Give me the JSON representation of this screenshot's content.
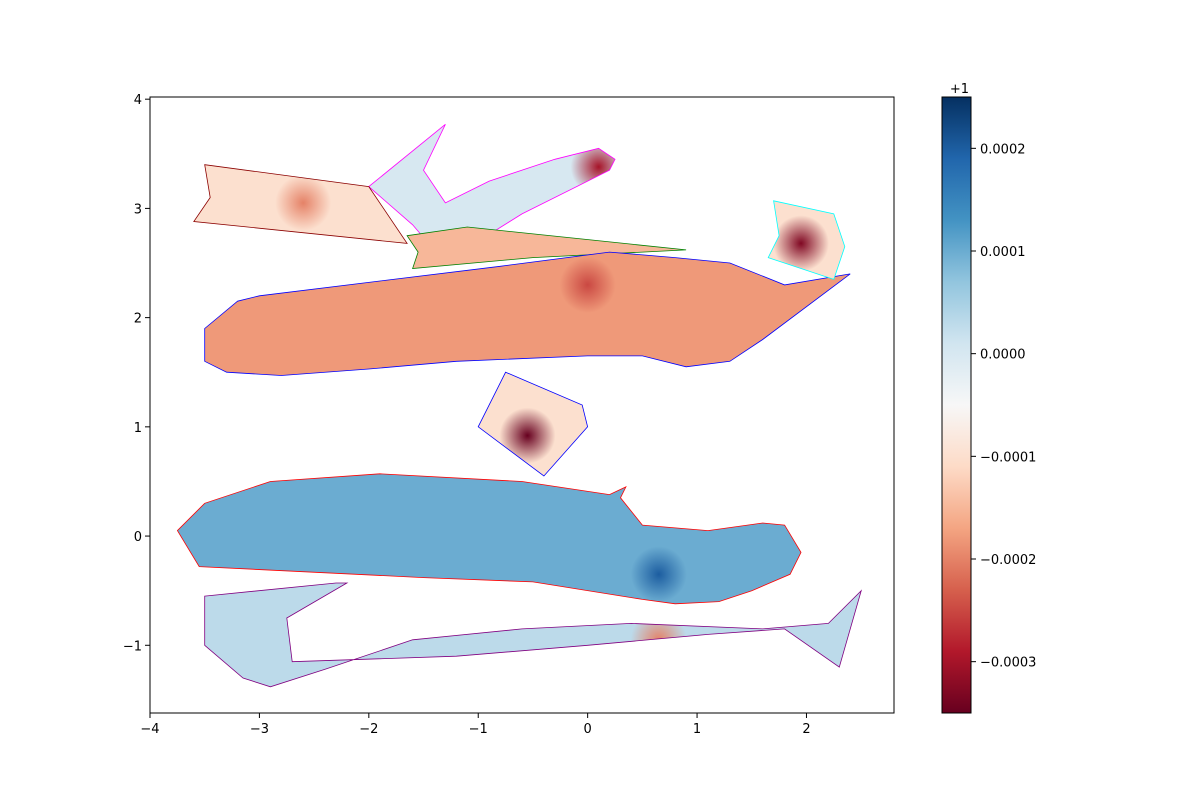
{
  "chart_data": {
    "type": "heatmap",
    "title": "",
    "xlabel": "",
    "ylabel": "",
    "xlim": [
      -4.0,
      2.8
    ],
    "ylim": [
      -1.62,
      4.02
    ],
    "x_ticks": [
      -4,
      -3,
      -2,
      -1,
      0,
      1,
      2
    ],
    "x_tick_labels": [
      "−4",
      "−3",
      "−2",
      "−1",
      "0",
      "1",
      "2"
    ],
    "y_ticks": [
      -1,
      0,
      1,
      2,
      3,
      4
    ],
    "y_tick_labels": [
      "−1",
      "0",
      "1",
      "2",
      "3",
      "4"
    ],
    "grid": false,
    "colormap": "RdBu",
    "colorbar": {
      "offset_label": "+1",
      "range": [
        -0.00035,
        0.00025
      ],
      "ticks": [
        0.0002,
        0.0001,
        0.0,
        -0.0001,
        -0.0002,
        -0.0003
      ],
      "tick_labels": [
        "0.0002",
        "0.0001",
        "0.0000",
        "−0.0001",
        "−0.0002",
        "−0.0003"
      ]
    },
    "regions": [
      {
        "name": "magenta hook",
        "outline_color": "#ff00ff",
        "value": 0.0,
        "polygon": [
          [
            -2.0,
            3.2
          ],
          [
            -1.3,
            3.77
          ],
          [
            -1.5,
            3.35
          ],
          [
            -1.3,
            3.05
          ],
          [
            -0.9,
            3.25
          ],
          [
            -0.3,
            3.45
          ],
          [
            0.1,
            3.55
          ],
          [
            0.25,
            3.45
          ],
          [
            0.2,
            3.35
          ],
          [
            -0.6,
            2.95
          ],
          [
            -1.0,
            2.7
          ],
          [
            -1.3,
            2.5
          ],
          [
            -1.6,
            2.85
          ]
        ],
        "hotspots": [
          {
            "x": 0.1,
            "y": 3.38,
            "value": -0.0003
          }
        ]
      },
      {
        "name": "dark red left strip",
        "outline_color": "#8b0000",
        "value": -0.0001,
        "polygon": [
          [
            -3.5,
            3.4
          ],
          [
            -2.0,
            3.2
          ],
          [
            -1.65,
            2.68
          ],
          [
            -3.6,
            2.88
          ],
          [
            -3.45,
            3.1
          ]
        ],
        "hotspots": [
          {
            "x": -2.6,
            "y": 3.05,
            "value": -0.0002
          }
        ]
      },
      {
        "name": "green strip",
        "outline_color": "#008000",
        "value": -0.00015,
        "polygon": [
          [
            -1.65,
            2.75
          ],
          [
            -1.1,
            2.83
          ],
          [
            0.9,
            2.62
          ],
          [
            -0.5,
            2.55
          ],
          [
            -1.6,
            2.45
          ],
          [
            -1.55,
            2.6
          ]
        ],
        "hotspots": []
      },
      {
        "name": "blue large shape",
        "outline_color": "#0000ff",
        "value": -0.00018,
        "polygon": [
          [
            -3.2,
            2.15
          ],
          [
            -3.0,
            2.2
          ],
          [
            -0.8,
            2.47
          ],
          [
            0.2,
            2.6
          ],
          [
            0.8,
            2.55
          ],
          [
            1.3,
            2.5
          ],
          [
            1.8,
            2.3
          ],
          [
            2.4,
            2.4
          ],
          [
            1.6,
            1.8
          ],
          [
            1.3,
            1.6
          ],
          [
            0.9,
            1.55
          ],
          [
            0.5,
            1.65
          ],
          [
            0.0,
            1.65
          ],
          [
            -1.2,
            1.6
          ],
          [
            -2.0,
            1.53
          ],
          [
            -2.8,
            1.47
          ],
          [
            -3.3,
            1.5
          ],
          [
            -3.5,
            1.6
          ],
          [
            -3.5,
            1.9
          ]
        ],
        "hotspots": [
          {
            "x": 0.0,
            "y": 2.3,
            "value": -0.00025
          }
        ]
      },
      {
        "name": "cyan small quad",
        "outline_color": "#00ffff",
        "value": -0.0001,
        "polygon": [
          [
            1.7,
            3.07
          ],
          [
            2.25,
            2.95
          ],
          [
            2.35,
            2.65
          ],
          [
            2.25,
            2.35
          ],
          [
            1.65,
            2.55
          ],
          [
            1.75,
            2.75
          ]
        ],
        "hotspots": [
          {
            "x": 1.95,
            "y": 2.68,
            "value": -0.00033
          }
        ]
      },
      {
        "name": "blue small quad",
        "outline_color": "#0000ff",
        "value": -0.0001,
        "polygon": [
          [
            -0.75,
            1.5
          ],
          [
            -0.05,
            1.2
          ],
          [
            0.0,
            1.0
          ],
          [
            -0.4,
            0.55
          ],
          [
            -1.0,
            1.0
          ]
        ],
        "hotspots": [
          {
            "x": -0.55,
            "y": 0.92,
            "value": -0.00035
          }
        ]
      },
      {
        "name": "red large shape",
        "outline_color": "#ff0000",
        "value": 0.0001,
        "polygon": [
          [
            -3.75,
            0.05
          ],
          [
            -3.55,
            -0.28
          ],
          [
            -1.5,
            -0.38
          ],
          [
            -0.5,
            -0.42
          ],
          [
            0.5,
            -0.58
          ],
          [
            0.8,
            -0.62
          ],
          [
            1.2,
            -0.6
          ],
          [
            1.5,
            -0.5
          ],
          [
            1.85,
            -0.35
          ],
          [
            1.95,
            -0.15
          ],
          [
            1.8,
            0.1
          ],
          [
            1.6,
            0.12
          ],
          [
            1.1,
            0.05
          ],
          [
            0.5,
            0.1
          ],
          [
            0.3,
            0.35
          ],
          [
            0.35,
            0.45
          ],
          [
            0.2,
            0.38
          ],
          [
            -0.6,
            0.5
          ],
          [
            -1.9,
            0.57
          ],
          [
            -2.9,
            0.5
          ],
          [
            -3.5,
            0.3
          ]
        ],
        "hotspots": [
          {
            "x": 0.65,
            "y": -0.35,
            "value": 0.0002
          }
        ]
      },
      {
        "name": "purple hook",
        "outline_color": "#800080",
        "value": 3e-05,
        "polygon": [
          [
            -3.5,
            -0.55
          ],
          [
            -2.3,
            -0.43
          ],
          [
            -2.2,
            -0.43
          ],
          [
            -2.75,
            -0.75
          ],
          [
            -2.7,
            -1.15
          ],
          [
            -1.2,
            -1.1
          ],
          [
            0.0,
            -1.0
          ],
          [
            1.1,
            -0.9
          ],
          [
            1.8,
            -0.85
          ],
          [
            2.3,
            -1.2
          ],
          [
            2.5,
            -0.5
          ],
          [
            2.2,
            -0.8
          ],
          [
            1.6,
            -0.85
          ],
          [
            0.4,
            -0.8
          ],
          [
            -0.6,
            -0.85
          ],
          [
            -1.6,
            -0.95
          ],
          [
            -2.4,
            -1.22
          ],
          [
            -2.9,
            -1.38
          ],
          [
            -3.15,
            -1.3
          ],
          [
            -3.5,
            -1.0
          ]
        ],
        "hotspots": [
          {
            "x": 0.65,
            "y": -0.95,
            "value": -0.0002
          }
        ]
      }
    ]
  }
}
